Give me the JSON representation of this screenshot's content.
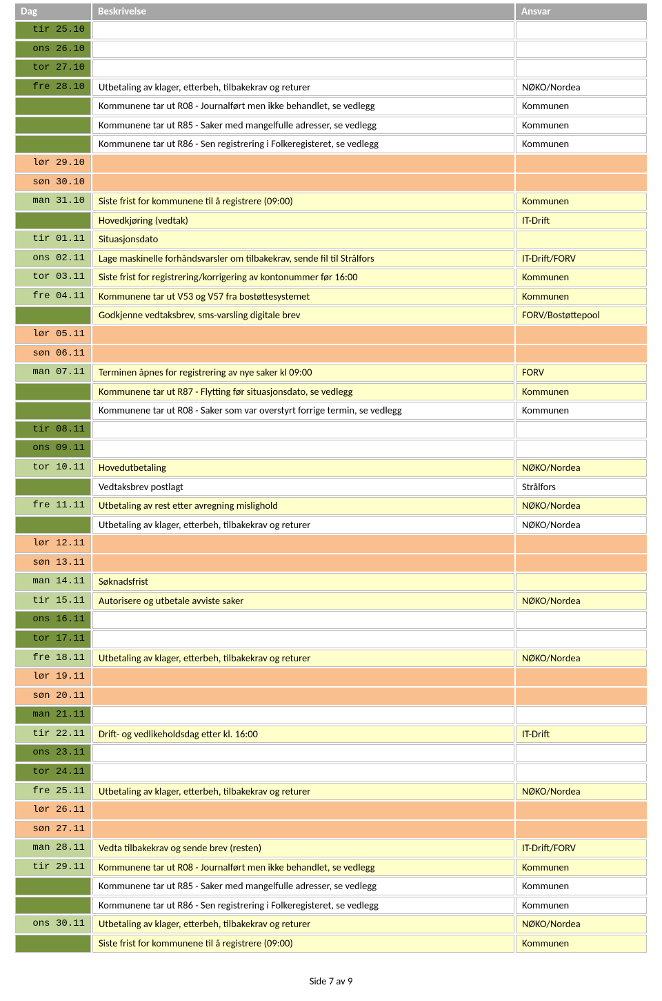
{
  "header": {
    "dag": "Dag",
    "beskrivelse": "Beskrivelse",
    "ansvar": "Ansvar"
  },
  "footer": "Side 7 av 9",
  "colors": {
    "header_bg": "#a6a6a6",
    "header_text": "#ffffff",
    "border": "#bfbfbf",
    "dag_green": "#76923c",
    "dag_pale_green": "#c2d69b",
    "weekend": "#f9bf8f",
    "highlight": "#ffffcc",
    "white": "#ffffff"
  },
  "rows": [
    {
      "dag": "tir 25.10",
      "dag_style": "green",
      "desc": "",
      "ansvar": "",
      "row_style": ""
    },
    {
      "dag": "ons 26.10",
      "dag_style": "green",
      "desc": "",
      "ansvar": "",
      "row_style": ""
    },
    {
      "dag": "tor 27.10",
      "dag_style": "green",
      "desc": "",
      "ansvar": "",
      "row_style": ""
    },
    {
      "dag": "fre 28.10",
      "dag_style": "green",
      "desc": "Utbetaling av klager, etterbeh, tilbakekrav og returer",
      "ansvar": "NØKO/Nordea",
      "row_style": ""
    },
    {
      "dag": "",
      "dag_style": "green",
      "desc": "Kommunene tar ut R08 - Journalført men ikke behandlet, se vedlegg",
      "ansvar": "Kommunen",
      "row_style": ""
    },
    {
      "dag": "",
      "dag_style": "green",
      "desc": "Kommunene tar ut R85 - Saker med mangelfulle adresser, se vedlegg",
      "ansvar": "Kommunen",
      "row_style": ""
    },
    {
      "dag": "",
      "dag_style": "green",
      "desc": "Kommunene tar ut R86 - Sen registrering i Folkeregisteret, se vedlegg",
      "ansvar": "Kommunen",
      "row_style": ""
    },
    {
      "dag": "lør 29.10",
      "dag_style": "weekend",
      "desc": "",
      "ansvar": "",
      "row_style": "weekend"
    },
    {
      "dag": "søn 30.10",
      "dag_style": "weekend",
      "desc": "",
      "ansvar": "",
      "row_style": "weekend"
    },
    {
      "dag": "man 31.10",
      "dag_style": "pale",
      "desc": "Siste frist for kommunene til å registrere (09:00)",
      "ansvar": "Kommunen",
      "row_style": "highlight"
    },
    {
      "dag": "",
      "dag_style": "green",
      "desc": "Hovedkjøring (vedtak)",
      "ansvar": "IT-Drift",
      "row_style": "highlight"
    },
    {
      "dag": "tir 01.11",
      "dag_style": "pale",
      "desc": "Situasjonsdato",
      "ansvar": "",
      "row_style": "highlight"
    },
    {
      "dag": "ons 02.11",
      "dag_style": "pale",
      "desc": "Lage maskinelle forhåndsvarsler om tilbakekrav, sende fil til Strålfors",
      "ansvar": "IT-Drift/FORV",
      "row_style": "highlight"
    },
    {
      "dag": "tor 03.11",
      "dag_style": "pale",
      "desc": "Siste frist for registrering/korrigering av kontonummer før 16:00",
      "ansvar": "Kommunen",
      "row_style": "highlight"
    },
    {
      "dag": "fre 04.11",
      "dag_style": "pale",
      "desc": "Kommunene tar ut V53 og V57 fra bostøttesystemet",
      "ansvar": "Kommunen",
      "row_style": "highlight"
    },
    {
      "dag": "",
      "dag_style": "green",
      "desc": "Godkjenne vedtaksbrev, sms-varsling digitale brev",
      "ansvar": "FORV/Bostøttepool",
      "row_style": "highlight"
    },
    {
      "dag": "lør 05.11",
      "dag_style": "weekend",
      "desc": "",
      "ansvar": "",
      "row_style": "weekend"
    },
    {
      "dag": "søn 06.11",
      "dag_style": "weekend",
      "desc": "",
      "ansvar": "",
      "row_style": "weekend"
    },
    {
      "dag": "man 07.11",
      "dag_style": "pale",
      "desc": "Terminen åpnes for registrering av nye saker kl 09:00",
      "ansvar": "FORV",
      "row_style": "highlight"
    },
    {
      "dag": "",
      "dag_style": "green",
      "desc": "Kommunene tar ut R87 - Flytting før situasjonsdato, se vedlegg",
      "ansvar": "Kommunen",
      "row_style": "highlight"
    },
    {
      "dag": "",
      "dag_style": "green",
      "desc": "Kommunene tar ut R08 - Saker som var overstyrt forrige termin, se vedlegg",
      "ansvar": "Kommunen",
      "row_style": ""
    },
    {
      "dag": "tir 08.11",
      "dag_style": "green",
      "desc": "",
      "ansvar": "",
      "row_style": ""
    },
    {
      "dag": "ons 09.11",
      "dag_style": "green",
      "desc": "",
      "ansvar": "",
      "row_style": ""
    },
    {
      "dag": "tor 10.11",
      "dag_style": "pale",
      "desc": "Hovedutbetaling",
      "ansvar": "NØKO/Nordea",
      "row_style": "highlight"
    },
    {
      "dag": "",
      "dag_style": "green",
      "desc": "Vedtaksbrev postlagt",
      "ansvar": "Strålfors",
      "row_style": ""
    },
    {
      "dag": "fre 11.11",
      "dag_style": "pale",
      "desc": "Utbetaling av rest etter avregning mislighold",
      "ansvar": "NØKO/Nordea",
      "row_style": "highlight"
    },
    {
      "dag": "",
      "dag_style": "green",
      "desc": "Utbetaling av klager, etterbeh, tilbakekrav og returer",
      "ansvar": "NØKO/Nordea",
      "row_style": ""
    },
    {
      "dag": "lør 12.11",
      "dag_style": "weekend",
      "desc": "",
      "ansvar": "",
      "row_style": "weekend"
    },
    {
      "dag": "søn 13.11",
      "dag_style": "weekend",
      "desc": "",
      "ansvar": "",
      "row_style": "weekend"
    },
    {
      "dag": "man 14.11",
      "dag_style": "pale",
      "desc": "Søknadsfrist",
      "ansvar": "",
      "row_style": "highlight"
    },
    {
      "dag": "tir 15.11",
      "dag_style": "pale",
      "desc": "Autorisere og utbetale avviste saker",
      "ansvar": "NØKO/Nordea",
      "row_style": "highlight"
    },
    {
      "dag": "ons 16.11",
      "dag_style": "green",
      "desc": "",
      "ansvar": "",
      "row_style": ""
    },
    {
      "dag": "tor 17.11",
      "dag_style": "green",
      "desc": "",
      "ansvar": "",
      "row_style": ""
    },
    {
      "dag": "fre 18.11",
      "dag_style": "pale",
      "desc": "Utbetaling av klager, etterbeh, tilbakekrav og returer",
      "ansvar": "NØKO/Nordea",
      "row_style": "highlight"
    },
    {
      "dag": "lør 19.11",
      "dag_style": "weekend",
      "desc": "",
      "ansvar": "",
      "row_style": "weekend"
    },
    {
      "dag": "søn 20.11",
      "dag_style": "weekend",
      "desc": "",
      "ansvar": "",
      "row_style": "weekend"
    },
    {
      "dag": "man 21.11",
      "dag_style": "green",
      "desc": "",
      "ansvar": "",
      "row_style": ""
    },
    {
      "dag": "tir 22.11",
      "dag_style": "pale",
      "desc": "Drift- og vedlikeholdsdag etter kl. 16:00",
      "ansvar": "IT-Drift",
      "row_style": "highlight"
    },
    {
      "dag": "ons 23.11",
      "dag_style": "green",
      "desc": "",
      "ansvar": "",
      "row_style": ""
    },
    {
      "dag": "tor 24.11",
      "dag_style": "green",
      "desc": "",
      "ansvar": "",
      "row_style": ""
    },
    {
      "dag": "fre 25.11",
      "dag_style": "pale",
      "desc": "Utbetaling av klager, etterbeh, tilbakekrav og returer",
      "ansvar": "NØKO/Nordea",
      "row_style": "highlight"
    },
    {
      "dag": "lør 26.11",
      "dag_style": "weekend",
      "desc": "",
      "ansvar": "",
      "row_style": "weekend"
    },
    {
      "dag": "søn 27.11",
      "dag_style": "weekend",
      "desc": "",
      "ansvar": "",
      "row_style": "weekend"
    },
    {
      "dag": "man 28.11",
      "dag_style": "pale",
      "desc": "Vedta tilbakekrav og sende brev (resten)",
      "ansvar": "IT-Drift/FORV",
      "row_style": "highlight"
    },
    {
      "dag": "tir 29.11",
      "dag_style": "pale",
      "desc": "Kommunene tar ut R08 - Journalført men ikke behandlet, se vedlegg",
      "ansvar": "Kommunen",
      "row_style": "highlight"
    },
    {
      "dag": "",
      "dag_style": "green",
      "desc": "Kommunene tar ut R85 - Saker med mangelfulle adresser, se vedlegg",
      "ansvar": "Kommunen",
      "row_style": ""
    },
    {
      "dag": "",
      "dag_style": "green",
      "desc": "Kommunene tar ut R86 - Sen registrering i Folkeregisteret, se vedlegg",
      "ansvar": "Kommunen",
      "row_style": ""
    },
    {
      "dag": "ons 30.11",
      "dag_style": "pale",
      "desc": "Utbetaling av klager, etterbeh, tilbakekrav og returer",
      "ansvar": "NØKO/Nordea",
      "row_style": "highlight"
    },
    {
      "dag": "",
      "dag_style": "green",
      "desc": "Siste frist for kommunene til å registrere (09:00)",
      "ansvar": "Kommunen",
      "row_style": "highlight"
    }
  ]
}
